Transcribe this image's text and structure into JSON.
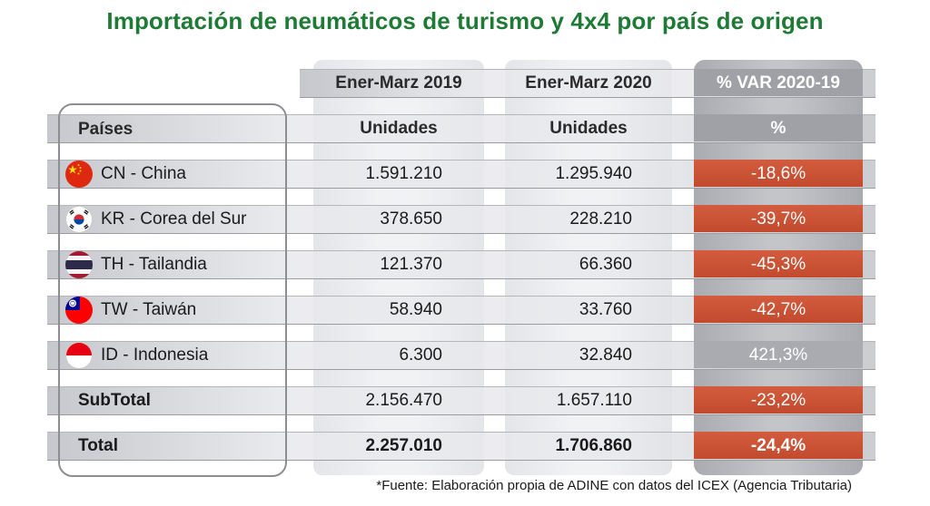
{
  "title": "Importación de neumáticos de turismo y 4x4 por país de origen",
  "columns": {
    "col1_period": "Ener-Marz 2019",
    "col2_period": "Ener-Marz 2020",
    "col3_period": "% VAR 2020-19",
    "row_header_label": "Países",
    "col1_unit": "Unidades",
    "col2_unit": "Unidades",
    "col3_unit": "%"
  },
  "rows": [
    {
      "country": "CN - China",
      "flag": "china-flag-icon",
      "v2019": "1.591.210",
      "v2020": "1.295.940",
      "var": "-18,6%",
      "negative": true
    },
    {
      "country": "KR - Corea del Sur",
      "flag": "south-korea-flag-icon",
      "v2019": "378.650",
      "v2020": "228.210",
      "var": "-39,7%",
      "negative": true
    },
    {
      "country": "TH - Tailandia",
      "flag": "thailand-flag-icon",
      "v2019": "121.370",
      "v2020": "66.360",
      "var": "-45,3%",
      "negative": true
    },
    {
      "country": "TW - Taiwán",
      "flag": "taiwan-flag-icon",
      "v2019": "58.940",
      "v2020": "33.760",
      "var": "-42,7%",
      "negative": true
    },
    {
      "country": "ID - Indonesia",
      "flag": "indonesia-flag-icon",
      "v2019": "6.300",
      "v2020": "32.840",
      "var": "421,3%",
      "negative": false
    }
  ],
  "subtotal": {
    "label": "SubTotal",
    "v2019": "2.156.470",
    "v2020": "1.657.110",
    "var": "-23,2%"
  },
  "total": {
    "label": "Total",
    "v2019": "2.257.010",
    "v2020": "1.706.860",
    "var": "-24,4%"
  },
  "footnote": "*Fuente: Elaboración propia de ADINE con datos del ICEX (Agencia Tributaria)",
  "colors": {
    "title": "#1e7a34",
    "negative_cell": "#c94f33",
    "accent_panel": "#b4b6ba"
  }
}
